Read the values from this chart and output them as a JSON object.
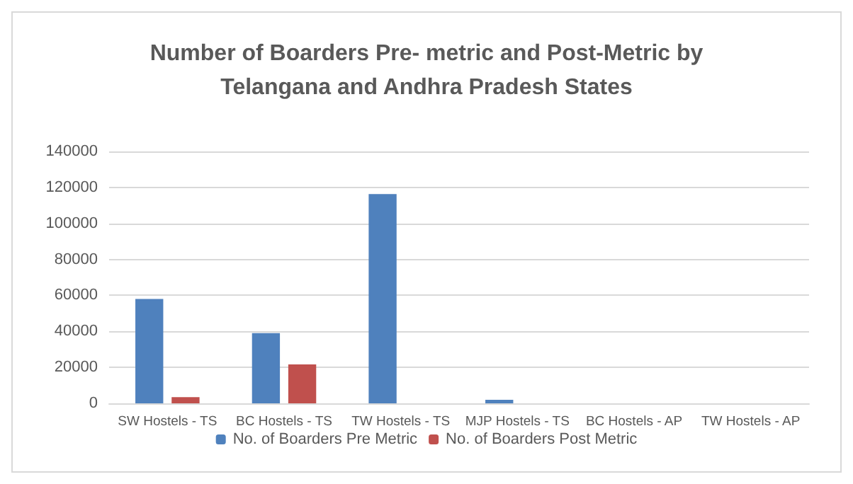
{
  "chart_data": {
    "type": "bar",
    "title": "Number of Boarders Pre- metric and Post-Metric by\nTelangana and Andhra Pradesh States",
    "categories": [
      "SW Hostels - TS",
      "BC Hostels - TS",
      "TW Hostels - TS",
      "MJP Hostels - TS",
      "BC Hostels - AP",
      "TW Hostels - AP"
    ],
    "series": [
      {
        "name": "No. of Boarders Pre Metric",
        "color": "#4f81bd",
        "values": [
          58000,
          39000,
          116300,
          2000,
          null,
          null
        ]
      },
      {
        "name": "No. of Boarders Post Metric",
        "color": "#c0504d",
        "values": [
          3400,
          21600,
          null,
          null,
          null,
          null
        ]
      }
    ],
    "ylim": [
      0,
      140000
    ],
    "yticks": [
      0,
      20000,
      40000,
      60000,
      80000,
      100000,
      120000,
      140000
    ],
    "grid": "y",
    "legend": "bottom"
  }
}
